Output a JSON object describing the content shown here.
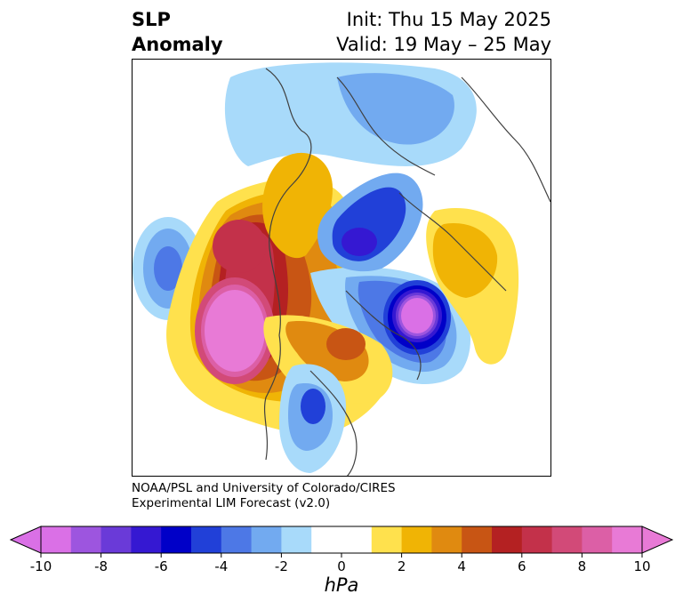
{
  "header": {
    "title_line1": "SLP",
    "title_line2": "Anomaly",
    "init": "Init: Thu 15 May 2025",
    "valid": "Valid: 19 May – 25 May"
  },
  "credit": {
    "line1": "NOAA/PSL and University of Colorado/CIRES",
    "line2": "Experimental LIM Forecast (v2.0)"
  },
  "colorbar": {
    "unit": "hPa",
    "ticks": [
      "-10",
      "-8",
      "-6",
      "-4",
      "-2",
      "0",
      "2",
      "4",
      "6",
      "8",
      "10"
    ],
    "colors": [
      "#da70e6",
      "#9d55df",
      "#6a3ad8",
      "#3518d2",
      "#0000c8",
      "#2140d8",
      "#4d78e6",
      "#72aaf0",
      "#a8dafa",
      "#ffffff",
      "#ffffff",
      "#ffe14d",
      "#f0b405",
      "#e08a10",
      "#c85514",
      "#b42122",
      "#c3314a",
      "#d24a78",
      "#dc5fa6",
      "#e87ad6"
    ],
    "left_extend": "#da70e6",
    "right_extend": "#e87ad6"
  }
}
